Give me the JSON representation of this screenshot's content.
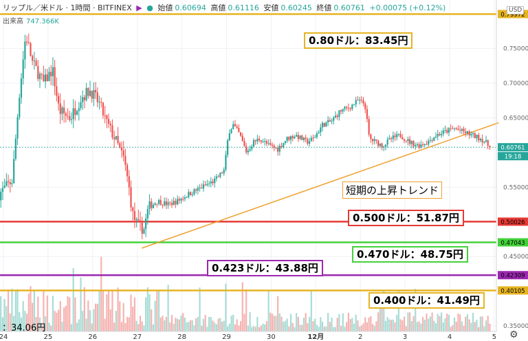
{
  "header": {
    "symbol": "リップル／米ドル · 1時間 · BITFINEX",
    "open_label": "始値",
    "open": "0.60694",
    "high_label": "高値",
    "high": "0.61116",
    "low_label": "安値",
    "low": "0.60245",
    "close_label": "終値",
    "close": "0.60761",
    "change": "+0.00075 (+0.12%)"
  },
  "volume": {
    "label": "出来高",
    "value": "747.366K"
  },
  "currency": "USD",
  "corner_text": "：34.06円",
  "trend_label": "短期の上昇トレンド",
  "annotations": [
    {
      "text": "0.80ドル：83.45円",
      "color": "#e6b422"
    },
    {
      "text": "0.500ドル：51.87円",
      "color": "#e53935"
    },
    {
      "text": "0.470ドル：48.75円",
      "color": "#43d13a"
    },
    {
      "text": "0.423ドル：43.88円",
      "color": "#9c27b0"
    },
    {
      "text": "0.400ドル：41.49円",
      "color": "#e6b422"
    }
  ],
  "chart_data": {
    "type": "candlestick",
    "x_ticks": [
      "24",
      "25",
      "26",
      "27",
      "28",
      "29",
      "30",
      "12月",
      "2",
      "3",
      "4",
      "5"
    ],
    "y_ticks": [
      "0.75000",
      "0.70000",
      "0.65000",
      "0.55000",
      "0.45000",
      "0.35000"
    ],
    "ylim": [
      0.342,
      0.82
    ],
    "last_price": "0.60761",
    "last_time": "19:18",
    "levels": [
      {
        "value": 0.79972,
        "label": "0.79972",
        "color": "#e6b422"
      },
      {
        "value": 0.50026,
        "label": "0.50026",
        "color": "#e53935"
      },
      {
        "value": 0.47043,
        "label": "0.47043",
        "color": "#43d13a"
      },
      {
        "value": 0.42309,
        "label": "0.42309",
        "color": "#9c27b0"
      },
      {
        "value": 0.40105,
        "label": "0.40105",
        "color": "#e6b422"
      }
    ],
    "trendline": {
      "color": "#f0a030",
      "from": {
        "day": 27.1,
        "price": 0.462
      },
      "to": {
        "day": 35.1,
        "price": 0.643
      }
    },
    "path": [
      [
        23.9,
        0.54
      ],
      [
        24.2,
        0.56
      ],
      [
        24.35,
        0.68
      ],
      [
        24.5,
        0.77
      ],
      [
        24.65,
        0.73
      ],
      [
        24.9,
        0.7
      ],
      [
        25.1,
        0.72
      ],
      [
        25.25,
        0.66
      ],
      [
        25.5,
        0.65
      ],
      [
        25.75,
        0.68
      ],
      [
        25.95,
        0.69
      ],
      [
        26.15,
        0.67
      ],
      [
        26.3,
        0.645
      ],
      [
        26.5,
        0.62
      ],
      [
        26.7,
        0.59
      ],
      [
        26.8,
        0.555
      ],
      [
        26.9,
        0.51
      ],
      [
        27.0,
        0.495
      ],
      [
        27.15,
        0.49
      ],
      [
        27.25,
        0.52
      ],
      [
        27.45,
        0.53
      ],
      [
        27.7,
        0.525
      ],
      [
        27.9,
        0.53
      ],
      [
        28.15,
        0.54
      ],
      [
        28.45,
        0.55
      ],
      [
        28.75,
        0.56
      ],
      [
        28.95,
        0.575
      ],
      [
        29.05,
        0.63
      ],
      [
        29.15,
        0.64
      ],
      [
        29.3,
        0.625
      ],
      [
        29.45,
        0.6
      ],
      [
        29.6,
        0.615
      ],
      [
        29.75,
        0.62
      ],
      [
        29.95,
        0.61
      ],
      [
        30.15,
        0.605
      ],
      [
        30.35,
        0.62
      ],
      [
        30.55,
        0.625
      ],
      [
        30.8,
        0.615
      ],
      [
        30.95,
        0.62
      ],
      [
        31.15,
        0.64
      ],
      [
        31.35,
        0.645
      ],
      [
        31.55,
        0.66
      ],
      [
        31.75,
        0.665
      ],
      [
        31.95,
        0.675
      ],
      [
        32.1,
        0.67
      ],
      [
        32.2,
        0.62
      ],
      [
        32.35,
        0.615
      ],
      [
        32.5,
        0.61
      ],
      [
        32.7,
        0.62
      ],
      [
        32.9,
        0.625
      ],
      [
        33.1,
        0.615
      ],
      [
        33.3,
        0.61
      ],
      [
        33.5,
        0.615
      ],
      [
        33.7,
        0.625
      ],
      [
        33.9,
        0.63
      ],
      [
        34.1,
        0.635
      ],
      [
        34.3,
        0.63
      ],
      [
        34.5,
        0.625
      ],
      [
        34.7,
        0.62
      ],
      [
        34.8,
        0.615
      ],
      [
        34.9,
        0.6076
      ]
    ]
  }
}
